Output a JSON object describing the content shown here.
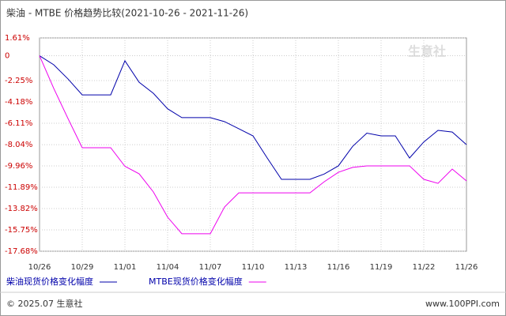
{
  "chart_data": {
    "type": "line",
    "title": "柴油 - MTBE 价格趋势比较(2021-10-26 - 2021-11-26)",
    "categories": [
      "10/26",
      null,
      null,
      "10/29",
      null,
      null,
      "11/01",
      null,
      null,
      "11/04",
      null,
      null,
      "11/07",
      null,
      null,
      "11/10",
      null,
      null,
      "11/13",
      null,
      null,
      "11/16",
      null,
      null,
      "11/19",
      null,
      null,
      "11/22",
      null,
      null,
      "11/26"
    ],
    "series": [
      {
        "name": "柴油现货价格变化幅度",
        "color": "#0000aa",
        "values": [
          0,
          -0.82,
          -2.1,
          -3.54,
          -3.54,
          -3.54,
          -0.46,
          -2.4,
          -3.4,
          -4.8,
          -5.6,
          -5.6,
          -5.6,
          -5.96,
          -6.6,
          -7.25,
          -9.25,
          -11.18,
          -11.18,
          -11.18,
          -10.7,
          -9.96,
          -8.2,
          -7.0,
          -7.25,
          -7.25,
          -9.25,
          -7.8,
          -6.75,
          -6.9,
          -8.04
        ]
      },
      {
        "name": "MTBE现货价格变化幅度",
        "color": "#ee00ee",
        "values": [
          0,
          -2.96,
          -5.68,
          -8.32,
          -8.32,
          -8.32,
          -10.0,
          -10.68,
          -12.32,
          -14.6,
          -16.1,
          -16.1,
          -16.1,
          -13.68,
          -12.4,
          -12.4,
          -12.4,
          -12.4,
          -12.4,
          -12.4,
          -11.4,
          -10.54,
          -10.1,
          -9.96,
          -9.96,
          -9.96,
          -9.96,
          -11.18,
          -11.54,
          -10.25,
          -11.32
        ]
      }
    ],
    "ylim": [
      -17.68,
      1.61
    ],
    "yticks": [
      {
        "value": 1.61,
        "label": "1.61%"
      },
      0,
      {
        "value": -2.25,
        "label": "-2.25%"
      },
      {
        "value": -4.18,
        "label": "-4.18%"
      },
      {
        "value": -6.11,
        "label": "-6.11%"
      },
      {
        "value": -8.04,
        "label": "-8.04%"
      },
      {
        "value": -9.96,
        "label": "-9.96%"
      },
      {
        "value": -11.89,
        "label": "-11.89%"
      },
      {
        "value": -13.82,
        "label": "-13.82%"
      },
      {
        "value": -15.75,
        "label": "-15.75%"
      },
      {
        "value": -17.68,
        "label": "-17.68%"
      }
    ],
    "grid": true,
    "watermark": "生意社",
    "footer_left": "© 2025.07 生意社",
    "footer_right": "www.100PPI.com"
  }
}
